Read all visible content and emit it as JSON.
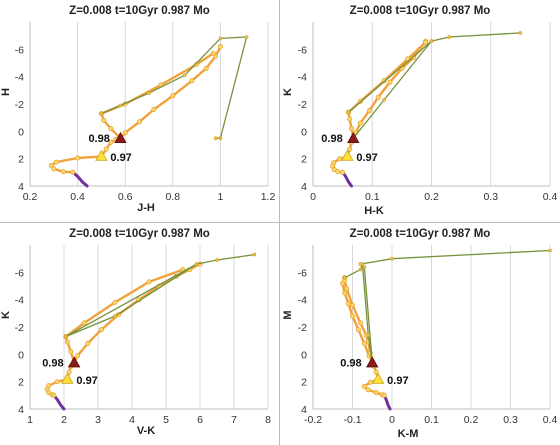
{
  "chart_data": [
    {
      "type": "line",
      "title": "Z=0.008  t=10Gyr 0.987 Mo",
      "xlabel": "J-H",
      "ylabel": "H",
      "xlim": [
        0.2,
        1.2
      ],
      "xticks": [
        0.2,
        0.4,
        0.6,
        0.8,
        1,
        1.2
      ],
      "ylim": [
        4,
        -8
      ],
      "yticks": [
        4,
        2,
        0,
        -2,
        -4,
        -6
      ],
      "y_inverted": true,
      "grid": "vertical",
      "markers": [
        {
          "label": "0.98",
          "x": 0.58,
          "y": 0.5,
          "shape": "triangle",
          "color": "#8b1a1a"
        },
        {
          "label": "0.97",
          "x": 0.5,
          "y": 1.8,
          "shape": "triangle",
          "color": "#ffe135"
        }
      ],
      "series": [
        {
          "color": "#7030a0",
          "x": [
            0.38,
            0.4,
            0.42,
            0.44
          ],
          "y": [
            3.0,
            3.3,
            3.7,
            4.0
          ]
        },
        {
          "color": "#f2a23a",
          "x": [
            0.5,
            0.4,
            0.31,
            0.29,
            0.3,
            0.34,
            0.38
          ],
          "y": [
            1.85,
            1.95,
            2.25,
            2.5,
            2.75,
            2.95,
            3.0
          ]
        },
        {
          "color": "#f2a23a",
          "x": [
            0.5,
            0.52,
            0.54,
            0.56,
            0.58,
            0.6,
            0.66,
            0.72,
            0.8,
            0.88,
            0.94,
            0.98,
            1.0
          ],
          "y": [
            1.85,
            1.3,
            0.8,
            0.6,
            0.5,
            0.1,
            -0.7,
            -1.6,
            -2.6,
            -3.7,
            -4.6,
            -5.5,
            -6.2
          ]
        },
        {
          "color": "#f2a23a",
          "x": [
            0.58,
            0.54,
            0.51,
            0.5,
            0.6,
            0.75,
            0.9,
            0.97
          ],
          "y": [
            0.5,
            -0.2,
            -0.8,
            -1.3,
            -2.0,
            -3.4,
            -4.9,
            -5.7
          ]
        },
        {
          "color": "#76923c",
          "x": [
            0.5,
            0.58,
            0.7,
            0.85,
            1.0,
            1.11,
            1.0,
            0.98
          ],
          "y": [
            -1.3,
            -1.9,
            -2.8,
            -4.1,
            -6.8,
            -6.9,
            0.5,
            0.5
          ]
        }
      ]
    },
    {
      "type": "line",
      "title": "Z=0.008  t=10Gyr 0.987 Mo",
      "xlabel": "H-K",
      "ylabel": "K",
      "xlim": [
        0,
        0.4
      ],
      "xticks": [
        0,
        0.1,
        0.2,
        0.3,
        0.4
      ],
      "ylim": [
        4,
        -8
      ],
      "yticks": [
        4,
        2,
        0,
        -2,
        -4,
        -6
      ],
      "y_inverted": true,
      "grid": "vertical",
      "markers": [
        {
          "label": "0.98",
          "x": 0.068,
          "y": 0.5,
          "shape": "triangle",
          "color": "#8b1a1a"
        },
        {
          "label": "0.97",
          "x": 0.058,
          "y": 1.8,
          "shape": "triangle",
          "color": "#ffe135"
        }
      ],
      "series": [
        {
          "color": "#7030a0",
          "x": [
            0.05,
            0.055,
            0.06,
            0.065
          ],
          "y": [
            3.0,
            3.3,
            3.7,
            4.0
          ]
        },
        {
          "color": "#f2a23a",
          "x": [
            0.058,
            0.045,
            0.035,
            0.033,
            0.036,
            0.042,
            0.05
          ],
          "y": [
            1.85,
            2.0,
            2.3,
            2.55,
            2.8,
            2.95,
            3.0
          ]
        },
        {
          "color": "#f2a23a",
          "x": [
            0.058,
            0.062,
            0.065,
            0.068,
            0.072,
            0.08,
            0.095,
            0.11,
            0.13,
            0.15,
            0.17,
            0.18,
            0.19
          ],
          "y": [
            1.85,
            1.3,
            0.8,
            0.5,
            0.1,
            -0.6,
            -1.5,
            -2.5,
            -3.6,
            -4.6,
            -5.4,
            -6.0,
            -6.6
          ]
        },
        {
          "color": "#f2a23a",
          "x": [
            0.068,
            0.065,
            0.062,
            0.06,
            0.08,
            0.12,
            0.16,
            0.19
          ],
          "y": [
            0.5,
            -0.2,
            -0.9,
            -1.4,
            -2.2,
            -3.7,
            -5.3,
            -6.5
          ]
        },
        {
          "color": "#76923c",
          "x": [
            0.068,
            0.12,
            0.2,
            0.23,
            0.35,
            0.23,
            0.2,
            0.06
          ],
          "y": [
            0.5,
            -2.3,
            -6.6,
            -6.9,
            -7.2,
            -6.9,
            -6.6,
            -1.4
          ]
        }
      ]
    },
    {
      "type": "line",
      "title": "Z=0.008  t=10Gyr 0.987 Mo",
      "xlabel": "V-K",
      "ylabel": "K",
      "xlim": [
        1,
        8
      ],
      "xticks": [
        1,
        2,
        3,
        4,
        5,
        6,
        7,
        8
      ],
      "ylim": [
        4,
        -8
      ],
      "yticks": [
        4,
        2,
        0,
        -2,
        -4,
        -6
      ],
      "y_inverted": true,
      "grid": "vertical",
      "markers": [
        {
          "label": "0.98",
          "x": 2.3,
          "y": 0.6,
          "shape": "triangle",
          "color": "#8b1a1a"
        },
        {
          "label": "0.97",
          "x": 2.1,
          "y": 1.8,
          "shape": "triangle",
          "color": "#ffe135"
        }
      ],
      "series": [
        {
          "color": "#7030a0",
          "x": [
            1.7,
            1.8,
            1.9,
            2.0
          ],
          "y": [
            3.0,
            3.3,
            3.7,
            4.0
          ]
        },
        {
          "color": "#f2a23a",
          "x": [
            2.1,
            1.8,
            1.55,
            1.5,
            1.55,
            1.65,
            1.7
          ],
          "y": [
            1.85,
            2.0,
            2.3,
            2.55,
            2.8,
            2.95,
            3.0
          ]
        },
        {
          "color": "#f2a23a",
          "x": [
            2.1,
            2.15,
            2.2,
            2.3,
            2.4,
            2.7,
            3.1,
            3.6,
            4.2,
            4.8,
            5.3,
            5.7,
            6.0
          ],
          "y": [
            1.85,
            1.3,
            0.9,
            0.6,
            0.1,
            -0.8,
            -1.8,
            -2.9,
            -4.0,
            -5.0,
            -5.7,
            -6.2,
            -6.6
          ]
        },
        {
          "color": "#f2a23a",
          "x": [
            2.3,
            2.2,
            2.1,
            2.05,
            2.6,
            3.5,
            4.5,
            5.5
          ],
          "y": [
            0.6,
            -0.2,
            -0.9,
            -1.3,
            -2.3,
            -3.8,
            -5.3,
            -6.2
          ]
        },
        {
          "color": "#76923c",
          "x": [
            2.05,
            3.5,
            5.9,
            6.5,
            7.6,
            6.5,
            5.9,
            2.05
          ],
          "y": [
            -1.3,
            -2.8,
            -6.6,
            -6.9,
            -7.3,
            -6.9,
            -6.6,
            -1.3
          ]
        }
      ]
    },
    {
      "type": "line",
      "title": "Z=0.008  t=10Gyr 0.987 Mo",
      "xlabel": "K-M",
      "ylabel": "M",
      "xlim": [
        -0.2,
        0.4
      ],
      "xticks": [
        -0.2,
        -0.1,
        0,
        0.1,
        0.2,
        0.3,
        0.4
      ],
      "ylim": [
        4,
        -8
      ],
      "yticks": [
        4,
        2,
        0,
        -2,
        -4,
        -6
      ],
      "y_inverted": true,
      "grid": "vertical",
      "markers": [
        {
          "label": "0.98",
          "x": -0.05,
          "y": 0.6,
          "shape": "triangle",
          "color": "#8b1a1a"
        },
        {
          "label": "0.97",
          "x": -0.035,
          "y": 1.8,
          "shape": "triangle",
          "color": "#ffe135"
        }
      ],
      "series": [
        {
          "color": "#7030a0",
          "x": [
            -0.02,
            -0.015,
            -0.01,
            -0.005
          ],
          "y": [
            3.0,
            3.3,
            3.7,
            4.0
          ]
        },
        {
          "color": "#f2a23a",
          "x": [
            -0.035,
            -0.055,
            -0.07,
            -0.06,
            -0.04,
            -0.025,
            -0.02
          ],
          "y": [
            1.85,
            2.05,
            2.35,
            2.6,
            2.8,
            2.95,
            3.0
          ]
        },
        {
          "color": "#f2a23a",
          "x": [
            -0.035,
            -0.04,
            -0.045,
            -0.05,
            -0.058,
            -0.07,
            -0.085,
            -0.1,
            -0.11,
            -0.12,
            -0.125,
            -0.12
          ],
          "y": [
            1.85,
            1.3,
            0.9,
            0.6,
            0.1,
            -0.8,
            -1.8,
            -2.8,
            -3.7,
            -4.5,
            -5.2,
            -5.6
          ]
        },
        {
          "color": "#f2a23a",
          "x": [
            -0.05,
            -0.055,
            -0.06,
            -0.065,
            -0.08,
            -0.1,
            -0.115,
            -0.12
          ],
          "y": [
            0.6,
            -0.1,
            -0.9,
            -1.4,
            -2.3,
            -3.6,
            -4.8,
            -5.4
          ]
        },
        {
          "color": "#76923c",
          "x": [
            -0.12,
            -0.08,
            -0.075,
            -0.06,
            -0.05,
            -0.07,
            -0.08,
            0.0,
            0.4
          ],
          "y": [
            -5.6,
            -6.2,
            -6.6,
            -1.4,
            0.6,
            -6.4,
            -6.6,
            -7.0,
            -7.6
          ]
        }
      ]
    }
  ]
}
